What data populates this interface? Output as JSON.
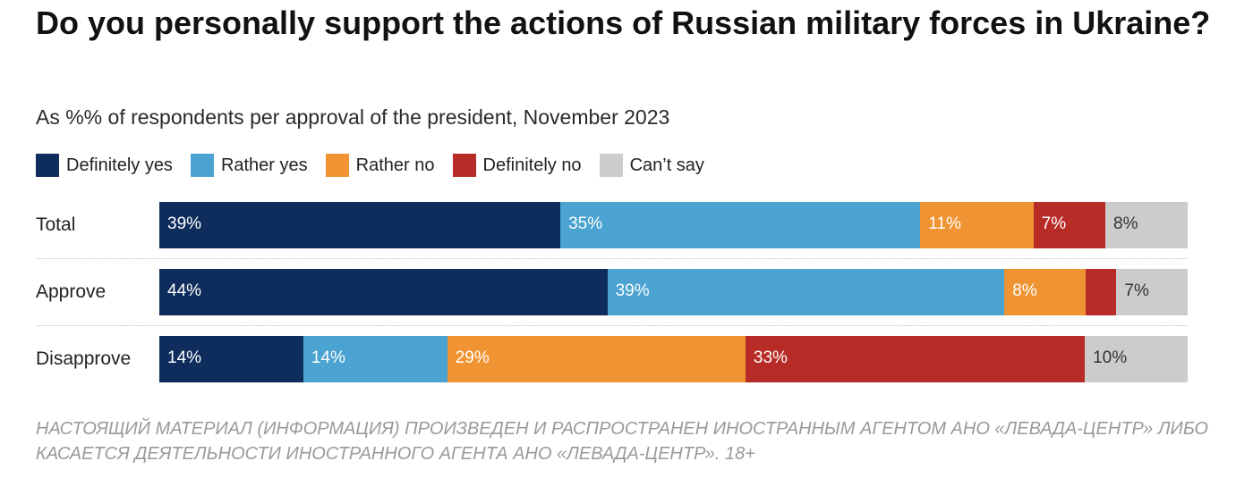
{
  "chart_data": {
    "type": "bar",
    "orientation": "horizontal",
    "stacked": true,
    "title": "Do you personally support the actions of Russian military forces in Ukraine?",
    "subtitle": "As %% of respondents per approval of the president, November 2023",
    "categories": [
      "Total",
      "Approve",
      "Disapprove"
    ],
    "series": [
      {
        "name": "Definitely yes",
        "color": "#0e2d5c",
        "values": [
          39,
          44,
          14
        ],
        "labels": [
          "39%",
          "44%",
          "14%"
        ]
      },
      {
        "name": "Rather yes",
        "color": "#4aa3d1",
        "values": [
          35,
          39,
          14
        ],
        "labels": [
          "35%",
          "39%",
          "14%"
        ]
      },
      {
        "name": "Rather no",
        "color": "#f09433",
        "values": [
          11,
          8,
          29
        ],
        "labels": [
          "11%",
          "8%",
          "29%"
        ]
      },
      {
        "name": "Definitely no",
        "color": "#b82c27",
        "values": [
          7,
          3,
          33
        ],
        "labels": [
          "7%",
          "",
          "33%"
        ]
      },
      {
        "name": "Can’t say",
        "color": "#cccccc",
        "values": [
          8,
          7,
          10
        ],
        "labels": [
          "8%",
          "7%",
          "10%"
        ]
      }
    ],
    "legend_position": "top-left",
    "xlim": [
      0,
      100
    ],
    "grid": false
  },
  "footnote": "НАСТОЯЩИЙ МАТЕРИАЛ (ИНФОРМАЦИЯ) ПРОИЗВЕДЕН И РАСПРОСТРАНЕН ИНОСТРАННЫМ АГЕНТОМ АНО «ЛЕВАДА-ЦЕНТР» ЛИБО КАСАЕТСЯ ДЕЯТЕЛЬНОСТИ ИНОСТРАННОГО АГЕНТА АНО «ЛЕВАДА-ЦЕНТР». 18+"
}
